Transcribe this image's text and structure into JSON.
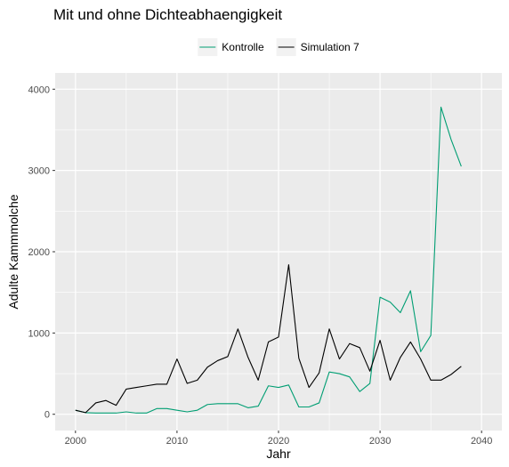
{
  "chart_data": {
    "type": "line",
    "title": "Mit und ohne Dichteabhaengigkeit",
    "xlabel": "Jahr",
    "ylabel": "Adulte Kammmolche",
    "xlim": [
      1998,
      2042
    ],
    "ylim": [
      -200,
      4200
    ],
    "xticks": [
      2000,
      2010,
      2020,
      2030,
      2040
    ],
    "yticks": [
      0,
      1000,
      2000,
      3000,
      4000
    ],
    "grid": true,
    "legend_position": "top",
    "x": [
      2000,
      2001,
      2002,
      2003,
      2004,
      2005,
      2006,
      2007,
      2008,
      2009,
      2010,
      2011,
      2012,
      2013,
      2014,
      2015,
      2016,
      2017,
      2018,
      2019,
      2020,
      2021,
      2022,
      2023,
      2024,
      2025,
      2026,
      2027,
      2028,
      2029,
      2030,
      2031,
      2032,
      2033,
      2034,
      2035,
      2036,
      2037,
      2038
    ],
    "series": [
      {
        "name": "Kontrolle",
        "color": "#009E73",
        "values": [
          50,
          20,
          15,
          15,
          15,
          30,
          15,
          15,
          70,
          70,
          50,
          30,
          50,
          120,
          130,
          130,
          130,
          80,
          100,
          350,
          330,
          360,
          90,
          90,
          140,
          520,
          500,
          460,
          280,
          380,
          1440,
          1380,
          1250,
          1520,
          770,
          970,
          3780,
          3380,
          3050
        ]
      },
      {
        "name": "Simulation 7",
        "color": "#000000",
        "values": [
          50,
          20,
          140,
          170,
          110,
          310,
          330,
          350,
          370,
          370,
          680,
          380,
          420,
          580,
          660,
          710,
          1050,
          700,
          420,
          890,
          950,
          1840,
          690,
          330,
          510,
          1050,
          680,
          870,
          820,
          530,
          910,
          420,
          700,
          890,
          680,
          420,
          420,
          490,
          590
        ]
      }
    ]
  }
}
